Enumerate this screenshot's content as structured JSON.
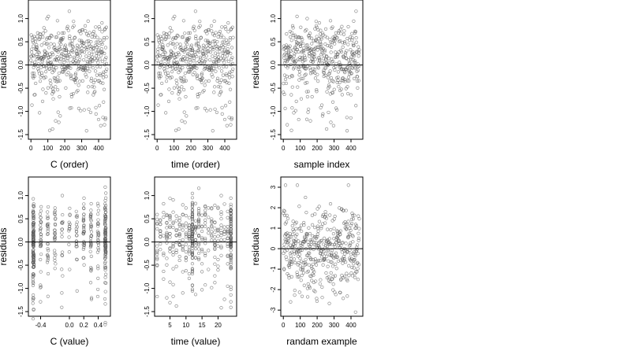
{
  "chart_data": [
    {
      "type": "scatter",
      "xlabel": "C (order)",
      "ylabel": "residuals",
      "xlim": [
        -15,
        470
      ],
      "ylim": [
        -1.6,
        1.4
      ],
      "xticks": [
        0,
        100,
        200,
        300,
        400
      ],
      "xtick_labels": [
        "0",
        "100",
        "200",
        "300",
        "400"
      ],
      "yticks": [
        -1.5,
        -1.0,
        -0.5,
        0.0,
        0.5,
        1.0
      ],
      "ytick_labels": [
        "-1.5",
        "-1.0",
        "-0.5",
        "0.0",
        "0.5",
        "1.0"
      ],
      "hline": 0,
      "n_points": 450,
      "points_description": "residuals vs sample order; mostly between -0.5 and 0.8, a few down to -1.5"
    },
    {
      "type": "scatter",
      "xlabel": "time (order)",
      "ylabel": "residuals",
      "xlim": [
        -15,
        470
      ],
      "ylim": [
        -1.6,
        1.4
      ],
      "xticks": [
        0,
        100,
        200,
        300,
        400
      ],
      "xtick_labels": [
        "0",
        "100",
        "200",
        "300",
        "400"
      ],
      "yticks": [
        -1.5,
        -1.0,
        -0.5,
        0.0,
        0.5,
        1.0
      ],
      "ytick_labels": [
        "-1.5",
        "-1.0",
        "-0.5",
        "0.0",
        "0.5",
        "1.0"
      ],
      "hline": 0,
      "n_points": 450,
      "points_description": "residuals vs time order; similar spread to C (order)"
    },
    {
      "type": "scatter",
      "xlabel": "sample index",
      "ylabel": "residuals",
      "xlim": [
        -15,
        470
      ],
      "ylim": [
        -1.6,
        1.4
      ],
      "xticks": [
        0,
        100,
        200,
        300,
        400
      ],
      "xtick_labels": [
        "0",
        "100",
        "200",
        "300",
        "400"
      ],
      "yticks": [
        -1.5,
        -1.0,
        -0.5,
        0.0,
        0.5,
        1.0
      ],
      "ytick_labels": [
        "-1.5",
        "-1.0",
        "-0.5",
        "0.0",
        "0.5",
        "1.0"
      ],
      "hline": 0,
      "n_points": 450,
      "points_description": "residuals vs sample index"
    },
    {
      "type": "scatter",
      "xlabel": "C (value)",
      "ylabel": "residuals",
      "xlim": [
        -0.57,
        0.57
      ],
      "ylim": [
        -1.6,
        1.4
      ],
      "xticks": [
        -0.4,
        0.0,
        0.2,
        0.4
      ],
      "xtick_labels": [
        "-0.4",
        "0.0",
        "0.2",
        "0.4"
      ],
      "yticks": [
        -1.5,
        -1.0,
        -0.5,
        0.0,
        0.5,
        1.0
      ],
      "ytick_labels": [
        "-1.5",
        "-1.0",
        "-0.5",
        "0.0",
        "0.5",
        "1.0"
      ],
      "hline": 0,
      "n_points": 450,
      "x_levels": [
        -0.5,
        -0.4,
        -0.3,
        -0.2,
        -0.1,
        0.0,
        0.1,
        0.2,
        0.3,
        0.4,
        0.5
      ],
      "points_description": "residuals vs C value; points stacked at discrete C levels, largest spread at -0.5 and 0.5"
    },
    {
      "type": "scatter",
      "xlabel": "time (value)",
      "ylabel": "residuals",
      "xlim": [
        0.2,
        25.8
      ],
      "ylim": [
        -1.6,
        1.4
      ],
      "xticks": [
        5,
        10,
        15,
        20
      ],
      "xtick_labels": [
        "5",
        "10",
        "15",
        "20"
      ],
      "yticks": [
        -1.5,
        -1.0,
        -0.5,
        0.0,
        0.5,
        1.0
      ],
      "ytick_labels": [
        "-1.5",
        "-1.0",
        "-0.5",
        "0.0",
        "0.5",
        "1.0"
      ],
      "hline": 0,
      "n_points": 450,
      "x_levels": [
        1,
        24
      ],
      "points_description": "residuals vs time value (integers 1-24); dense vertical columns near 12 and 24"
    },
    {
      "type": "scatter",
      "xlabel": "randam example",
      "ylabel": "residuals",
      "xlim": [
        -15,
        470
      ],
      "ylim": [
        -3.3,
        3.5
      ],
      "xticks": [
        0,
        100,
        200,
        300,
        400
      ],
      "xtick_labels": [
        "0",
        "100",
        "200",
        "300",
        "400"
      ],
      "yticks": [
        -3,
        -2,
        -1,
        0,
        1,
        2,
        3
      ],
      "ytick_labels": [
        "-3",
        "-2",
        "-1",
        "0",
        "1",
        "2",
        "3"
      ],
      "hline": 0,
      "n_points": 450,
      "points_description": "random normal example for comparison; spread roughly -2.5 to 3"
    }
  ]
}
